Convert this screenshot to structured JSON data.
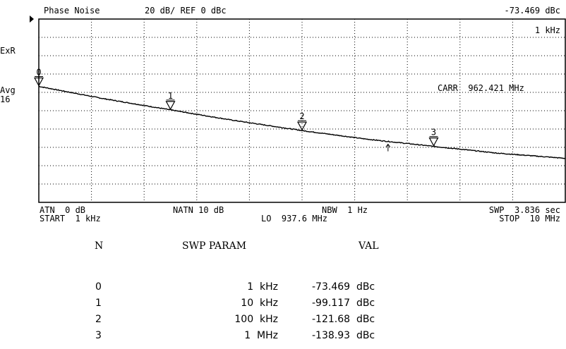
{
  "header": {
    "title": "Phase Noise",
    "scale": "20 dB/ REF 0 dBc",
    "marker_value": "-73.469 dBc",
    "marker_freq": "1 kHz"
  },
  "side": {
    "exr": "ExR",
    "avg": "Avg",
    "avg_count": "16"
  },
  "annotations": {
    "carrier": "CARR  962.421 MHz"
  },
  "footer": {
    "atn": "ATN  0 dB",
    "natn": "NATN 10 dB",
    "nbw": "NBW  1 Hz",
    "swp": "SWP  3.836 sec",
    "start": "START  1 kHz",
    "lo": "LO  937.6 MHz",
    "stop": "STOP  10 MHz"
  },
  "table": {
    "headers": [
      "N",
      "SWP PARAM",
      "VAL"
    ],
    "rows": [
      {
        "n": "0",
        "param": "1  kHz",
        "val": "-73.469  dBc"
      },
      {
        "n": "1",
        "param": "10  kHz",
        "val": "-99.117  dBc"
      },
      {
        "n": "2",
        "param": "100  kHz",
        "val": "-121.68  dBc"
      },
      {
        "n": "3",
        "param": "1  MHz",
        "val": "-138.93  dBc"
      }
    ]
  },
  "chart_data": {
    "type": "line",
    "title": "Phase Noise",
    "x_scale": "log",
    "x_unit": "Hz",
    "xlim": [
      1000,
      10000000
    ],
    "ylim": [
      -200,
      0
    ],
    "y_unit": "dBc",
    "grid": true,
    "series": [
      {
        "x": [
          1000,
          3000,
          10000,
          30000,
          100000,
          300000,
          1000000,
          3000000,
          10000000
        ],
        "y": [
          -73.469,
          -86.5,
          -99.117,
          -110.5,
          -121.68,
          -130.8,
          -138.93,
          -146.2,
          -152.0
        ]
      }
    ],
    "markers": [
      {
        "label": "0",
        "x": 1000,
        "y": -73.469
      },
      {
        "label": "1",
        "x": 10000,
        "y": -99.117
      },
      {
        "label": "2",
        "x": 100000,
        "y": -121.68
      },
      {
        "label": "3",
        "x": 1000000,
        "y": -138.93
      }
    ],
    "lo_arrow": {
      "x": 450000
    }
  }
}
